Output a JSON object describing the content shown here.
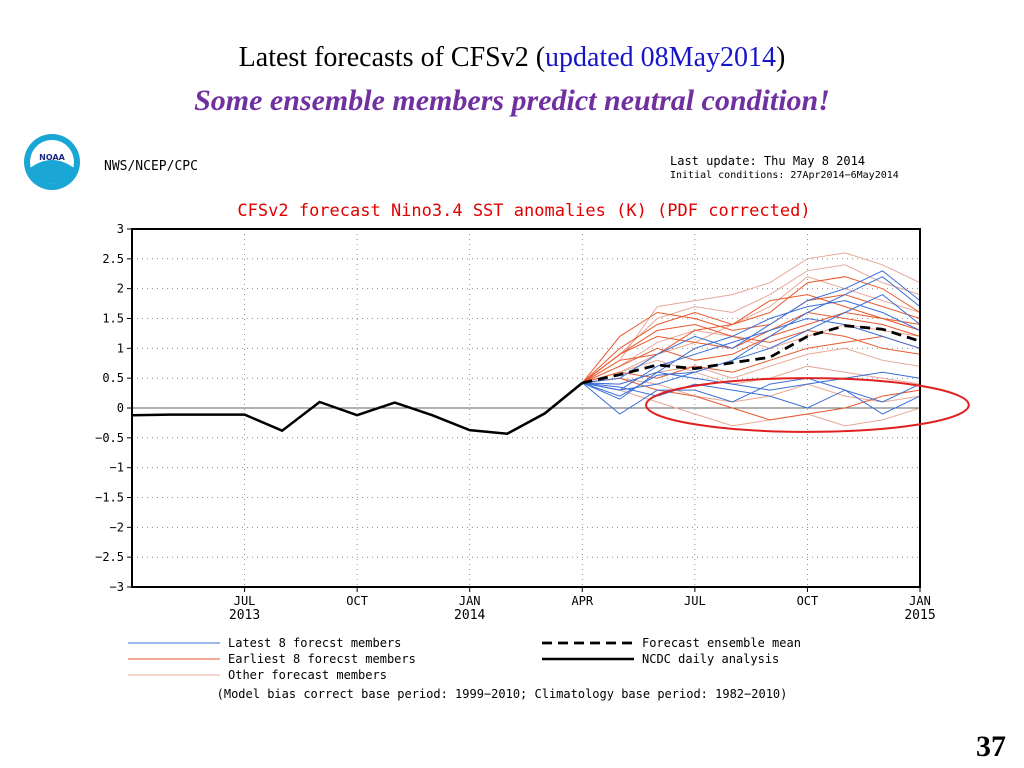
{
  "slide": {
    "title_prefix": "Latest forecasts of CFSv2 (",
    "title_highlight": "updated 08May2014",
    "title_suffix": ")",
    "subtitle": "Some ensemble members predict neutral condition!",
    "page_number": "37"
  },
  "header": {
    "logo_text": "NOAA",
    "agency": "NWS/NCEP/CPC",
    "last_update": "Last update: Thu May 8 2014",
    "initial_conditions": "Initial conditions: 27Apr2014−6May2014"
  },
  "colors": {
    "latest": "#3a6fd8",
    "earliest": "#e85a30",
    "other": "#e8a898",
    "mean": "#000000",
    "analysis": "#000000",
    "title": "#e00000",
    "circle": "#e02020"
  },
  "chart_data": {
    "type": "line",
    "title": "CFSv2 forecast Nino3.4 SST anomalies (K) (PDF corrected)",
    "xlabel": "",
    "ylabel": "",
    "x_unit": "month",
    "xlim": [
      "2013-04",
      "2015-01"
    ],
    "ylim": [
      -3,
      3
    ],
    "y_ticks": [
      3,
      2.5,
      2,
      1.5,
      1,
      0.5,
      0,
      -0.5,
      -1,
      -1.5,
      -2,
      -2.5,
      -3
    ],
    "y_tick_labels": [
      "3",
      "2.5",
      "2",
      "1.5",
      "1",
      "0.5",
      "0",
      "−0.5",
      "−1",
      "−1.5",
      "−2",
      "−2.5",
      "−3"
    ],
    "x_ticks": [
      {
        "x": "2013-07",
        "label": "JUL",
        "year": "2013"
      },
      {
        "x": "2013-10",
        "label": "OCT",
        "year": ""
      },
      {
        "x": "2014-01",
        "label": "JAN",
        "year": "2014"
      },
      {
        "x": "2014-04",
        "label": "APR",
        "year": ""
      },
      {
        "x": "2014-07",
        "label": "JUL",
        "year": ""
      },
      {
        "x": "2014-10",
        "label": "OCT",
        "year": ""
      },
      {
        "x": "2015-01",
        "label": "JAN",
        "year": "2015"
      }
    ],
    "grid": true,
    "zero_line": true,
    "analysis": {
      "name": "NCDC daily analysis",
      "x": [
        "2013-04",
        "2013-05",
        "2013-06",
        "2013-07",
        "2013-08",
        "2013-09",
        "2013-10",
        "2013-11",
        "2013-12",
        "2014-01",
        "2014-02",
        "2014-03",
        "2014-04"
      ],
      "values": [
        -0.12,
        -0.11,
        -0.11,
        -0.11,
        -0.38,
        0.1,
        -0.12,
        0.09,
        -0.12,
        -0.37,
        -0.43,
        -0.09,
        0.42
      ]
    },
    "ensemble_mean": {
      "name": "Forecast ensemble mean",
      "x": [
        "2014-04",
        "2014-05",
        "2014-06",
        "2014-07",
        "2014-08",
        "2014-09",
        "2014-10",
        "2014-11",
        "2014-12",
        "2015-01"
      ],
      "values": [
        0.42,
        0.56,
        0.72,
        0.66,
        0.76,
        0.85,
        1.2,
        1.38,
        1.32,
        1.12
      ]
    },
    "forecast_x": [
      "2014-04",
      "2014-05",
      "2014-06",
      "2014-07",
      "2014-08",
      "2014-09",
      "2014-10",
      "2014-11",
      "2014-12",
      "2015-01"
    ],
    "members": {
      "latest": [
        [
          0.42,
          0.2,
          0.55,
          0.6,
          0.8,
          1.2,
          1.6,
          1.9,
          2.2,
          1.7
        ],
        [
          0.42,
          -0.1,
          0.3,
          0.3,
          0.1,
          0.4,
          0.5,
          0.3,
          -0.1,
          0.2
        ],
        [
          0.42,
          0.5,
          0.9,
          1.2,
          1.0,
          1.4,
          1.8,
          2.0,
          2.3,
          1.8
        ],
        [
          0.42,
          0.3,
          0.4,
          0.6,
          0.8,
          1.0,
          1.3,
          1.6,
          1.9,
          1.4
        ],
        [
          0.42,
          0.35,
          0.2,
          0.4,
          0.3,
          0.2,
          0.0,
          0.3,
          0.1,
          0.4
        ],
        [
          0.42,
          0.15,
          0.6,
          1.0,
          1.2,
          1.5,
          1.7,
          1.8,
          1.6,
          1.3
        ],
        [
          0.42,
          0.4,
          0.6,
          0.5,
          0.4,
          0.3,
          0.4,
          0.5,
          0.6,
          0.5
        ],
        [
          0.42,
          0.3,
          0.7,
          0.9,
          1.1,
          1.3,
          1.5,
          1.4,
          1.2,
          1.0
        ]
      ],
      "earliest": [
        [
          0.42,
          1.0,
          1.4,
          1.6,
          1.4,
          1.8,
          1.9,
          1.7,
          1.5,
          1.4
        ],
        [
          0.42,
          0.9,
          1.2,
          1.1,
          1.0,
          1.3,
          1.6,
          1.5,
          1.4,
          1.2
        ],
        [
          0.42,
          0.7,
          1.0,
          0.8,
          0.9,
          1.2,
          1.4,
          1.6,
          1.5,
          1.3
        ],
        [
          0.42,
          0.8,
          0.9,
          1.3,
          1.4,
          1.6,
          2.1,
          2.2,
          2.0,
          1.6
        ],
        [
          0.42,
          0.6,
          0.5,
          0.7,
          0.6,
          0.8,
          1.0,
          1.1,
          1.2,
          1.0
        ],
        [
          0.42,
          0.9,
          1.3,
          1.4,
          1.2,
          1.1,
          1.3,
          1.2,
          1.0,
          0.9
        ],
        [
          0.42,
          0.5,
          0.3,
          0.2,
          0.0,
          -0.2,
          -0.1,
          0.0,
          0.2,
          0.3
        ],
        [
          0.42,
          1.2,
          1.6,
          1.5,
          1.3,
          1.4,
          1.8,
          1.9,
          1.7,
          1.5
        ]
      ],
      "other": [
        [
          0.42,
          0.8,
          1.7,
          1.8,
          1.9,
          2.1,
          2.5,
          2.6,
          2.4,
          2.1
        ],
        [
          0.42,
          0.6,
          0.9,
          1.1,
          1.4,
          1.7,
          2.2,
          2.0,
          1.8,
          1.6
        ],
        [
          0.42,
          0.4,
          0.6,
          0.7,
          0.5,
          0.7,
          0.9,
          1.0,
          0.8,
          0.7
        ],
        [
          0.42,
          0.3,
          0.1,
          -0.1,
          -0.3,
          -0.2,
          -0.1,
          -0.3,
          -0.2,
          0.0
        ],
        [
          0.42,
          0.5,
          0.4,
          0.2,
          0.1,
          0.2,
          0.4,
          0.2,
          0.1,
          0.2
        ],
        [
          0.42,
          0.7,
          1.1,
          1.3,
          1.2,
          1.0,
          1.2,
          1.4,
          1.3,
          1.2
        ],
        [
          0.42,
          0.6,
          0.8,
          0.6,
          0.4,
          0.5,
          0.7,
          0.6,
          0.5,
          0.4
        ],
        [
          0.42,
          0.9,
          1.5,
          1.7,
          1.6,
          1.9,
          2.3,
          2.4,
          2.1,
          1.9
        ]
      ]
    },
    "legend": {
      "placement": "bottom",
      "entries": [
        {
          "label": "Latest 8 forecst members",
          "style": "latest"
        },
        {
          "label": "Earliest 8 forecst members",
          "style": "earliest"
        },
        {
          "label": "Other forecast members",
          "style": "other"
        },
        {
          "label": "Forecast ensemble mean",
          "style": "mean"
        },
        {
          "label": "NCDC daily analysis",
          "style": "analysis"
        }
      ]
    },
    "footnote": "(Model bias correct base period: 1999−2010; Climatology base period: 1982−2010)",
    "annotation": {
      "type": "ellipse",
      "center_x": "2014-10",
      "center_y": 0.05,
      "rx_months": 4.3,
      "ry": 0.45
    }
  }
}
